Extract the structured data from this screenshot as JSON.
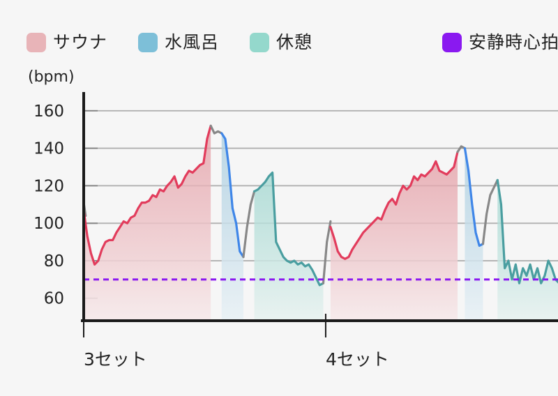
{
  "chart_data": {
    "type": "area",
    "ylabel": "(bpm)",
    "yticks": [
      60,
      80,
      100,
      120,
      140,
      160
    ],
    "ylim": [
      48,
      170
    ],
    "xlim": [
      0,
      200
    ],
    "categories": [
      {
        "label": "3セット",
        "x": 0
      },
      {
        "label": "4セット",
        "x": 100
      }
    ],
    "legend": [
      {
        "key": "sauna",
        "label": "サウナ",
        "color": "#e8b4b8"
      },
      {
        "key": "cold",
        "label": "水風呂",
        "color": "#7dbfd8"
      },
      {
        "key": "rest",
        "label": "休憩",
        "color": "#94d8cc"
      },
      {
        "key": "resting",
        "label": "安静時心拍",
        "color": "#8a19f0"
      }
    ],
    "resting_hr": 70,
    "segments": [
      {
        "phase": "transition",
        "x": [
          0,
          0.8
        ],
        "y": [
          111,
          104
        ]
      },
      {
        "phase": "sauna",
        "x": [
          0,
          1.5,
          3,
          4.5,
          6,
          7.5,
          9,
          10.5,
          12,
          13.5,
          15,
          16.5,
          18,
          19.5,
          21,
          22.5,
          24,
          25.5,
          27,
          28.5,
          30,
          31.5,
          33,
          34.5,
          36,
          37.5,
          39,
          40.5,
          42,
          43.5,
          45,
          46.5,
          48,
          49.5,
          51,
          52.5
        ],
        "y": [
          107,
          93,
          84,
          78,
          80,
          86,
          90,
          91,
          91,
          95,
          98,
          101,
          100,
          103,
          104,
          108,
          111,
          111,
          112,
          115,
          114,
          118,
          117,
          120,
          122,
          125,
          119,
          121,
          125,
          128,
          127,
          129,
          131,
          132,
          145,
          152
        ]
      },
      {
        "phase": "transition",
        "x": [
          52.5,
          54,
          55.5,
          57
        ],
        "y": [
          152,
          148,
          149,
          148
        ]
      },
      {
        "phase": "cold",
        "x": [
          57,
          58.5,
          60,
          61.5,
          63,
          64.5,
          66
        ],
        "y": [
          148,
          145,
          130,
          108,
          100,
          85,
          82
        ]
      },
      {
        "phase": "transition",
        "x": [
          66,
          67.5,
          69,
          70.5
        ],
        "y": [
          82,
          98,
          110,
          117
        ]
      },
      {
        "phase": "rest",
        "x": [
          70.5,
          72,
          73.5,
          75,
          76.5,
          78,
          79.5,
          81,
          82.5,
          84,
          85.5,
          87,
          88.5,
          90,
          91.5,
          93,
          94.5,
          96,
          97.5,
          99
        ],
        "y": [
          117,
          118,
          120,
          122,
          125,
          127,
          90,
          86,
          82,
          80,
          79,
          80,
          78,
          79,
          77,
          78,
          75,
          71,
          67,
          68
        ]
      },
      {
        "phase": "transition",
        "x": [
          99,
          100.5,
          102
        ],
        "y": [
          68,
          90,
          101
        ]
      },
      {
        "phase": "sauna",
        "x": [
          102,
          103.5,
          105,
          106.5,
          108,
          109.5,
          111,
          112.5,
          114,
          115.5,
          117,
          118.5,
          120,
          121.5,
          123,
          124.5,
          126,
          127.5,
          129,
          130.5,
          132,
          133.5,
          135,
          136.5,
          138,
          139.5,
          141,
          142.5,
          144,
          145.5,
          147,
          148.5,
          150,
          151.5,
          153,
          154.5
        ],
        "y": [
          98,
          92,
          85,
          82,
          81,
          82,
          86,
          89,
          92,
          95,
          97,
          99,
          101,
          103,
          102,
          107,
          111,
          113,
          110,
          116,
          120,
          118,
          120,
          125,
          123,
          126,
          125,
          127,
          129,
          133,
          128,
          127,
          126,
          128,
          130,
          138
        ]
      },
      {
        "phase": "transition",
        "x": [
          154.5,
          156,
          157.5
        ],
        "y": [
          138,
          141,
          140
        ]
      },
      {
        "phase": "cold",
        "x": [
          157.5,
          159,
          160.5,
          162,
          163.5,
          165
        ],
        "y": [
          140,
          128,
          110,
          95,
          88,
          89
        ]
      },
      {
        "phase": "transition",
        "x": [
          165,
          166.5,
          168,
          169.5,
          171
        ],
        "y": [
          89,
          105,
          115,
          119,
          123
        ]
      },
      {
        "phase": "rest",
        "x": [
          171,
          172.5,
          174,
          175.5,
          177,
          178.5,
          180,
          181.5,
          183,
          184.5,
          186,
          187.5,
          189,
          190.5,
          192,
          193.5,
          195,
          196.5,
          198,
          199.5
        ],
        "y": [
          123,
          110,
          76,
          80,
          70,
          78,
          68,
          76,
          72,
          78,
          70,
          76,
          68,
          72,
          80,
          76,
          70,
          68,
          80,
          70
        ]
      }
    ]
  }
}
